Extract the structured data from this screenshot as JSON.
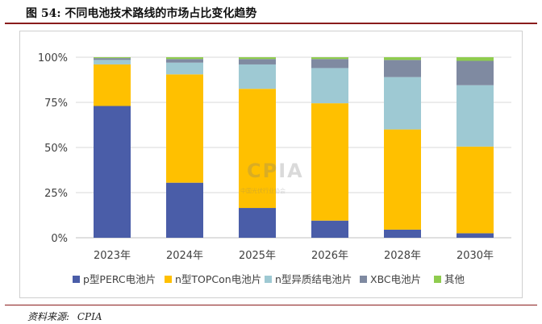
{
  "title": "图 54:  不同电池技术路线的市场占比变化趋势",
  "source": {
    "label": "资料来源:",
    "value": "CPIA"
  },
  "watermark": {
    "logo": "CPIA",
    "sub": "中国光伏行业协会"
  },
  "colors": {
    "perc": "#4a5da8",
    "topcon": "#ffc000",
    "hjt": "#9ec9d3",
    "xbc": "#7f8aa1",
    "other": "#8fcc4e",
    "grid": "#d9d9d9",
    "axis": "#bfbfbf",
    "title_rule": "#8a1c1c"
  },
  "chart_data": {
    "type": "bar",
    "stacked": true,
    "title": "",
    "xlabel": "",
    "ylabel": "",
    "ylim": [
      0,
      100
    ],
    "yticks": [
      "0%",
      "25%",
      "50%",
      "75%",
      "100%"
    ],
    "categories": [
      "2023年",
      "2024年",
      "2025年",
      "2026年",
      "2028年",
      "2030年"
    ],
    "series": [
      {
        "name": "p型PERC电池片",
        "color": "#4a5da8",
        "values": [
          73,
          30.5,
          16.5,
          9.5,
          4.5,
          2.5
        ]
      },
      {
        "name": "n型TOPCon电池片",
        "color": "#ffc000",
        "values": [
          23,
          60,
          66,
          65,
          55.5,
          48
        ]
      },
      {
        "name": "n型异质结电池片",
        "color": "#9ec9d3",
        "values": [
          2.5,
          6.5,
          13.5,
          19.5,
          29,
          34
        ]
      },
      {
        "name": "XBC电池片",
        "color": "#7f8aa1",
        "values": [
          1,
          2,
          3,
          5,
          9.5,
          13.5
        ]
      },
      {
        "name": "其他",
        "color": "#8fcc4e",
        "values": [
          0.5,
          1,
          1,
          1,
          1.5,
          2
        ]
      }
    ],
    "grid": true,
    "legend_position": "bottom"
  }
}
